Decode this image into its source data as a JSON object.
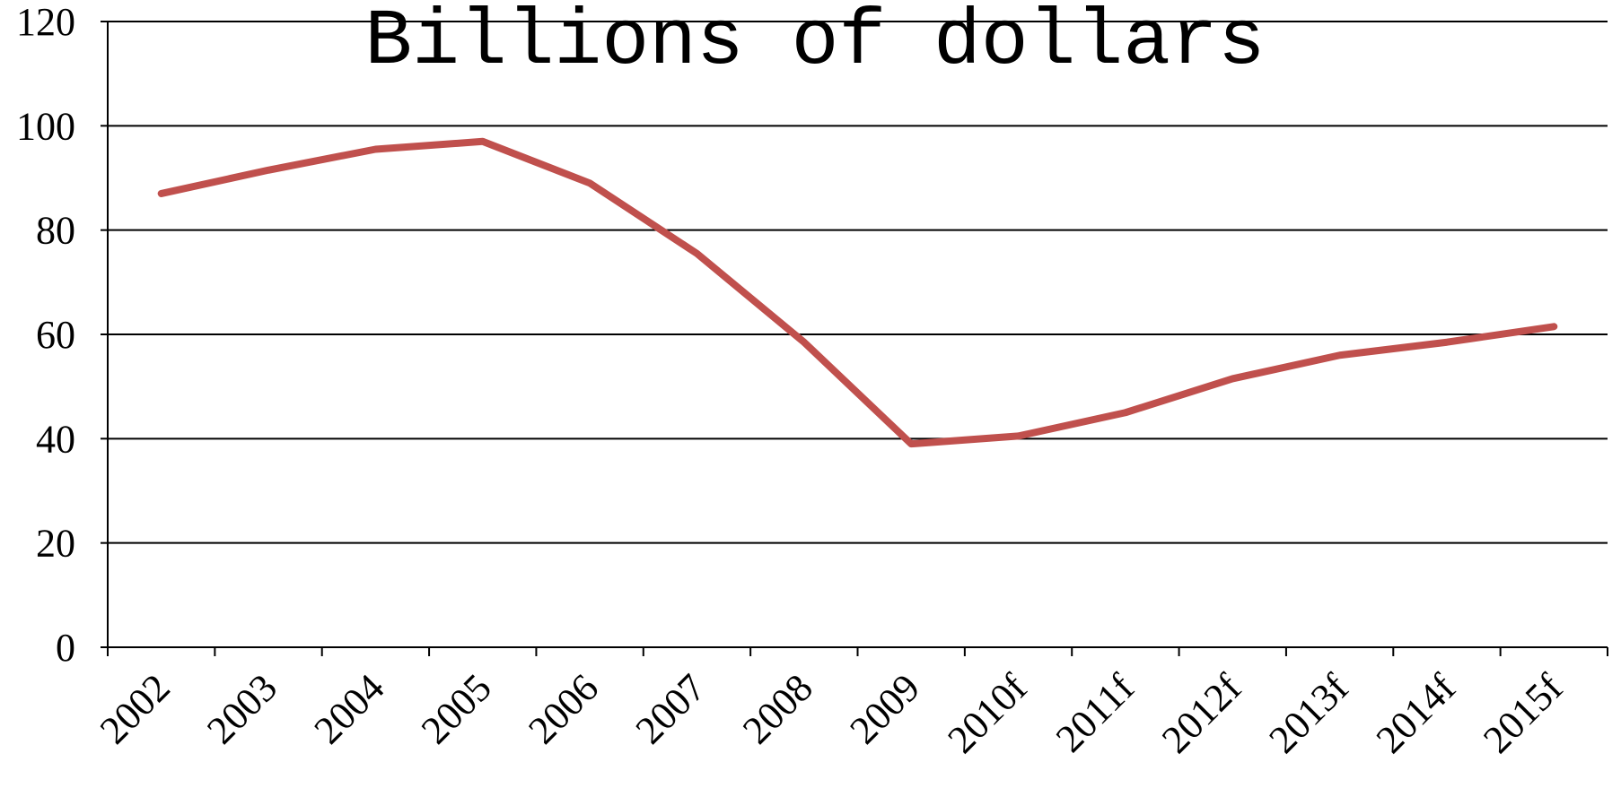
{
  "chart_data": {
    "type": "line",
    "title": "Billions of dollars",
    "xlabel": "",
    "ylabel": "",
    "categories": [
      "2002",
      "2003",
      "2004",
      "2005",
      "2006",
      "2007",
      "2008",
      "2009",
      "2010f",
      "2011f",
      "2012f",
      "2013f",
      "2014f",
      "2015f"
    ],
    "series": [
      {
        "values": [
          87,
          91.5,
          95.5,
          97,
          89,
          75.5,
          58.5,
          39,
          40.5,
          45,
          51.5,
          56,
          58.5,
          61.5
        ],
        "color": "#c0504d"
      }
    ],
    "ylim": [
      0,
      120
    ],
    "yticks": [
      0,
      20,
      40,
      60,
      80,
      100,
      120
    ],
    "grid": true,
    "legend": "none"
  }
}
